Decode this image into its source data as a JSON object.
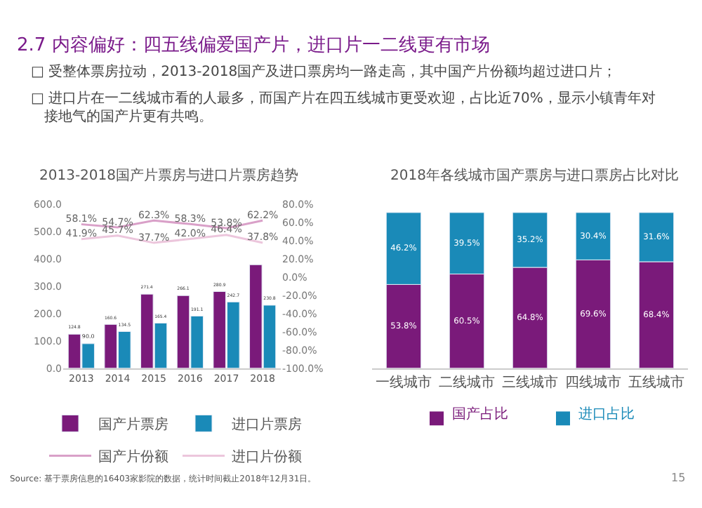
{
  "chart_data": [
    {
      "type": "bar",
      "title": "2013-2018国产片票房与进口片票房趋势",
      "categories": [
        "2013",
        "2014",
        "2015",
        "2016",
        "2017",
        "2018"
      ],
      "series": [
        {
          "name": "国产片票房",
          "color": "#7a1a7a",
          "values": [
            124.8,
            160.6,
            271.4,
            266.1,
            280.9,
            379.0
          ],
          "value_labels": [
            "124.8",
            "160.6",
            "271.4",
            "266.1",
            "280.9",
            null
          ]
        },
        {
          "name": "进口片票房",
          "color": "#1a8ab8",
          "values": [
            90.0,
            134.5,
            165.4,
            191.1,
            242.7,
            230.8
          ],
          "value_labels": [
            "90.0",
            "134.5",
            "165.4",
            "191.1",
            "242.7",
            "230.8"
          ]
        },
        {
          "name": "国产片份额",
          "type": "line",
          "axis": "y2",
          "color": "#d9a0c8",
          "values": [
            58.1,
            54.7,
            62.3,
            58.3,
            53.8,
            62.2
          ],
          "value_labels": [
            "58.1%",
            "54.7%",
            "62.3%",
            "58.3%",
            "53.8%",
            "62.2%"
          ]
        },
        {
          "name": "进口片份额",
          "type": "line",
          "axis": "y2",
          "color": "#ecc6dc",
          "values": [
            41.9,
            45.7,
            37.7,
            42.0,
            46.4,
            37.8
          ],
          "value_labels": [
            "41.9%",
            "45.7%",
            "37.7%",
            "42.0%",
            "46.4%",
            "37.8%"
          ]
        }
      ],
      "ylim": [
        0,
        600
      ],
      "yticks": [
        {
          "value": 0,
          "label": "0.0"
        },
        {
          "value": 100,
          "label": "100.0"
        },
        {
          "value": 200,
          "label": "200.0"
        },
        {
          "value": 300,
          "label": "300.0"
        },
        {
          "value": 400,
          "label": "400.0"
        },
        {
          "value": 500,
          "label": "500.0"
        },
        {
          "value": 600,
          "label": "600.0"
        }
      ],
      "y2lim": [
        -100,
        80
      ],
      "y2ticks": [
        {
          "value": -100,
          "label": "-100.0%"
        },
        {
          "value": -80,
          "label": "-80.0%"
        },
        {
          "value": -60,
          "label": "-60.0%"
        },
        {
          "value": -40,
          "label": "-40.0%"
        },
        {
          "value": -20,
          "label": "-20.0%"
        },
        {
          "value": 0,
          "label": "0.0%"
        },
        {
          "value": 20,
          "label": "20.0%"
        },
        {
          "value": 40,
          "label": "40.0%"
        },
        {
          "value": 60,
          "label": "60.0%"
        },
        {
          "value": 80,
          "label": "80.0%"
        }
      ],
      "legend": "bottom",
      "marker": "none",
      "line_style": "solid",
      "annotations": [
        "2.7 内容偏好：四五线偏爱国产片，进口片一二线更有市场",
        "□ 受整体票房拉动，2013-2018国产及进口票房均一路走高，其中国产片份额均超过进口片；",
        "□ 进口片在一二线城市看的人最多，而国产片在四五线城市更受欢迎，占比近70%，显示小镇青年对接地气的国产片更有共鸣。",
        "Source: 基于票房信息的16403家影院的数据，统计时间截止2018年12月31日。",
        "15"
      ]
    },
    {
      "type": "bar",
      "title": "2018年各线城市国产票房与进口票房占比对比",
      "stacked": true,
      "categories": [
        "一线城市",
        "二线城市",
        "三线城市",
        "四线城市",
        "五线城市"
      ],
      "series": [
        {
          "name": "国产占比",
          "color": "#7a1a7a",
          "values": [
            53.8,
            60.5,
            64.8,
            69.6,
            68.4
          ],
          "value_labels": [
            "53.8%",
            "60.5%",
            "64.8%",
            "69.6%",
            "68.4%"
          ]
        },
        {
          "name": "进口占比",
          "color": "#1a8ab8",
          "values": [
            46.2,
            39.5,
            35.2,
            30.4,
            31.6
          ],
          "value_labels": [
            "46.2%",
            "39.5%",
            "35.2%",
            "30.4%",
            "31.6%"
          ]
        }
      ],
      "legend": "bottom"
    }
  ]
}
